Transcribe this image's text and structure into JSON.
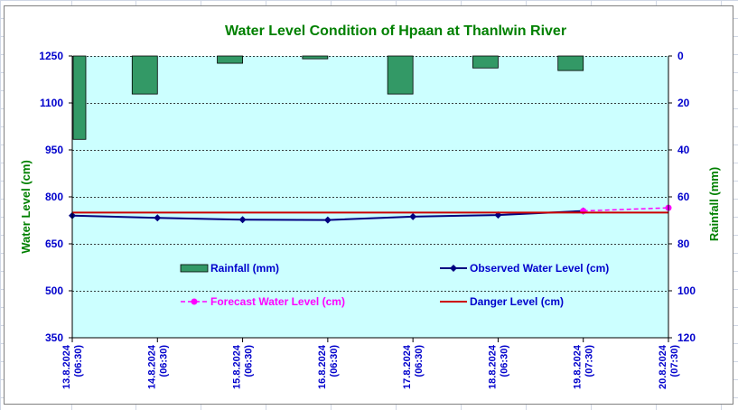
{
  "chart_data": {
    "type": "line",
    "title": "Water Level Condition of Hpaan at Thanlwin River",
    "ylabel": "Water Level (cm)",
    "y2label": "Rainfall (mm)",
    "ylim": [
      350,
      1250
    ],
    "yticks": [
      350,
      500,
      650,
      800,
      950,
      1100,
      1250
    ],
    "y2lim": [
      0,
      120
    ],
    "y2reversed": true,
    "y2ticks": [
      0,
      20,
      40,
      60,
      80,
      100,
      120
    ],
    "categories": [
      "13.8.2024\n(06:30)",
      "14.8.2024\n(06:30)",
      "15.8.2024\n(06:30)",
      "16.8.2024\n(06:30)",
      "17.8.2024\n(06:30)",
      "18.8.2024\n(06:30)",
      "19.8.2024\n(07:30)",
      "20.8.2024\n(07:30)"
    ],
    "grid": true,
    "legend_position": "inside-bottom",
    "plot_background": "#ccffff",
    "series": [
      {
        "name": "Rainfall (mm)",
        "kind": "bar",
        "axis": "y2",
        "color": "#339966",
        "values": [
          35.5,
          16.2,
          3.1,
          1.2,
          16.2,
          5.1,
          6.2,
          null
        ]
      },
      {
        "name": "Observed Water Level (cm)",
        "kind": "line",
        "axis": "y",
        "color": "#000080",
        "values": [
          740,
          733,
          727,
          726,
          737,
          742,
          755,
          null
        ]
      },
      {
        "name": "Forecast Water Level (cm)",
        "kind": "line-dashed",
        "axis": "y",
        "color": "#ff00ff",
        "values": [
          null,
          null,
          null,
          null,
          null,
          null,
          755,
          765
        ]
      },
      {
        "name": "Danger Level (cm)",
        "kind": "line",
        "axis": "y",
        "color": "#cc0000",
        "values": [
          750,
          750,
          750,
          750,
          750,
          750,
          750,
          750
        ]
      }
    ],
    "colors": {
      "title": "#008000",
      "axis_text": "#0000cc",
      "grid": "#000000"
    }
  }
}
